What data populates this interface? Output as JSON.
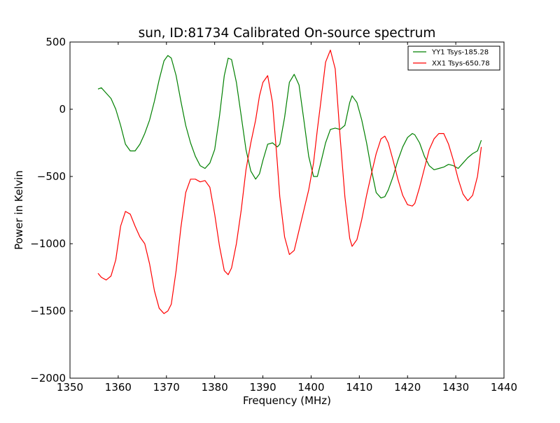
{
  "chart_data": {
    "type": "line",
    "title": "sun, ID:81734 Calibrated On-source spectrum",
    "xlabel": "Frequency (MHz)",
    "ylabel": "Power in Kelvin",
    "xlim": [
      1350,
      1440
    ],
    "ylim": [
      -2000,
      500
    ],
    "xticks": [
      1350,
      1360,
      1370,
      1380,
      1390,
      1400,
      1410,
      1420,
      1430,
      1440
    ],
    "yticks": [
      500,
      0,
      -500,
      -1000,
      -1500,
      -2000
    ],
    "grid": false,
    "legend_position": "top-right",
    "series": [
      {
        "name": "YY1 Tsys-185.28",
        "color": "#008000",
        "x": [
          1355.8,
          1356.5,
          1357.5,
          1358.5,
          1359.5,
          1360.5,
          1361.5,
          1362.5,
          1363.5,
          1364.5,
          1365.5,
          1366.5,
          1367.5,
          1368.5,
          1369.5,
          1370.3,
          1371,
          1372,
          1373,
          1374,
          1375,
          1376,
          1377,
          1378,
          1379,
          1380,
          1381,
          1382,
          1382.8,
          1383.5,
          1384.5,
          1385.5,
          1386.5,
          1387.5,
          1388.5,
          1389.3,
          1390,
          1391,
          1392,
          1393,
          1393.5,
          1394.5,
          1395.5,
          1396.5,
          1397.5,
          1398.5,
          1399.5,
          1400.5,
          1401.3,
          1402,
          1403,
          1404,
          1405,
          1406,
          1407,
          1408,
          1408.5,
          1409.5,
          1410.5,
          1411.5,
          1412.5,
          1413.5,
          1414.5,
          1415.3,
          1416,
          1417,
          1418,
          1419,
          1420,
          1421,
          1421.5,
          1422.5,
          1423.5,
          1424.5,
          1425.5,
          1426.5,
          1427.5,
          1428.5,
          1429.5,
          1430.5,
          1431.5,
          1432.5,
          1433.5,
          1434.5,
          1435.3
        ],
        "values": [
          150,
          160,
          120,
          80,
          0,
          -120,
          -260,
          -310,
          -310,
          -260,
          -180,
          -80,
          60,
          220,
          360,
          400,
          380,
          250,
          60,
          -120,
          -250,
          -350,
          -420,
          -440,
          -400,
          -300,
          -50,
          250,
          380,
          370,
          200,
          -50,
          -300,
          -460,
          -520,
          -480,
          -380,
          -260,
          -250,
          -280,
          -260,
          -60,
          200,
          260,
          180,
          -80,
          -350,
          -500,
          -500,
          -400,
          -250,
          -150,
          -140,
          -150,
          -120,
          50,
          100,
          50,
          -80,
          -250,
          -450,
          -620,
          -660,
          -650,
          -600,
          -500,
          -380,
          -280,
          -210,
          -180,
          -190,
          -250,
          -350,
          -420,
          -450,
          -440,
          -430,
          -410,
          -420,
          -440,
          -400,
          -360,
          -330,
          -310,
          -230
        ]
      },
      {
        "name": "XX1 Tsys-650.78",
        "color": "#ff0000",
        "x": [
          1355.8,
          1356.5,
          1357.5,
          1358.5,
          1359.5,
          1360.5,
          1361.5,
          1362.5,
          1363.5,
          1364.5,
          1365.5,
          1366.5,
          1367.5,
          1368.5,
          1369.5,
          1370.3,
          1371,
          1372,
          1373,
          1374,
          1375,
          1376,
          1377,
          1378,
          1379,
          1380,
          1381,
          1382,
          1382.8,
          1383.5,
          1384.5,
          1385.5,
          1386.5,
          1387.5,
          1388.5,
          1389.3,
          1390,
          1391,
          1392,
          1393,
          1393.5,
          1394.5,
          1395.5,
          1396.5,
          1397.5,
          1398.5,
          1399.5,
          1400.5,
          1401.3,
          1402,
          1403,
          1404,
          1405,
          1406,
          1407,
          1408,
          1408.5,
          1409.5,
          1410.5,
          1411.5,
          1412.5,
          1413.5,
          1414.5,
          1415.3,
          1416,
          1417,
          1418,
          1419,
          1420,
          1421,
          1421.5,
          1422.5,
          1423.5,
          1424.5,
          1425.5,
          1426.5,
          1427.5,
          1428.5,
          1429.5,
          1430.5,
          1431.5,
          1432.5,
          1433.5,
          1434.5,
          1435.3
        ],
        "values": [
          -1220,
          -1250,
          -1270,
          -1240,
          -1120,
          -870,
          -760,
          -780,
          -870,
          -950,
          -1000,
          -1150,
          -1350,
          -1480,
          -1520,
          -1500,
          -1450,
          -1200,
          -880,
          -620,
          -520,
          -520,
          -540,
          -530,
          -580,
          -780,
          -1020,
          -1200,
          -1230,
          -1180,
          -1000,
          -750,
          -450,
          -250,
          -80,
          100,
          200,
          250,
          50,
          -400,
          -650,
          -950,
          -1080,
          -1050,
          -900,
          -750,
          -600,
          -400,
          -150,
          50,
          350,
          440,
          300,
          -200,
          -650,
          -960,
          -1020,
          -970,
          -820,
          -640,
          -480,
          -330,
          -220,
          -200,
          -250,
          -380,
          -520,
          -640,
          -710,
          -720,
          -700,
          -580,
          -440,
          -300,
          -220,
          -180,
          -180,
          -260,
          -380,
          -520,
          -630,
          -680,
          -640,
          -500,
          -280
        ]
      }
    ]
  }
}
